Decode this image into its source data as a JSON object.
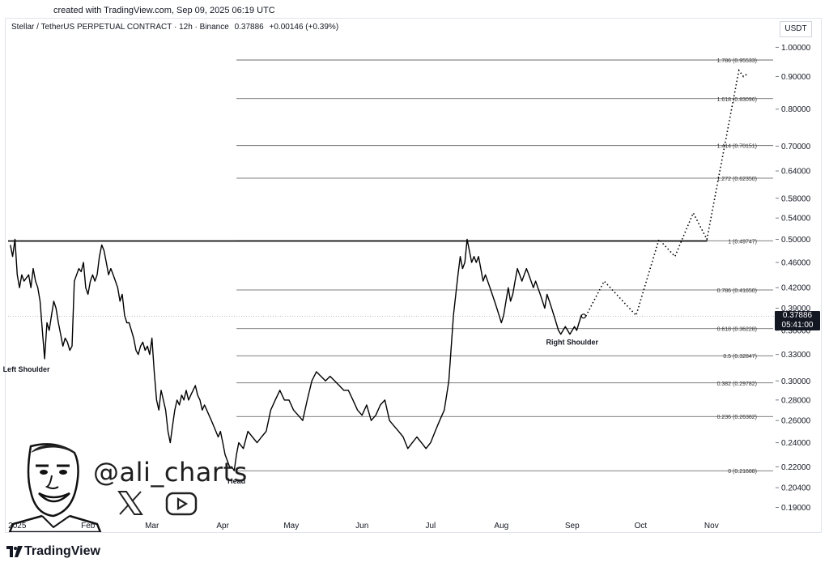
{
  "header": {
    "created": "created with TradingView.com, Sep 09, 2025 06:19 UTC"
  },
  "legend": {
    "symbol": "Stellar / TetherUS PERPETUAL CONTRACT · 12h · Binance",
    "last": "0.37886",
    "change": "+0.00146 (+0.39%)"
  },
  "currency": "USDT",
  "price_tag": {
    "price": "0.37886",
    "countdown": "05:41:00"
  },
  "branding": {
    "logo_text": "TradingView",
    "handle": "@ali_charts"
  },
  "colors": {
    "price": "#000000",
    "level": "#555555",
    "resistance": "#000000",
    "tag_bg": "#131722"
  },
  "chart_data": {
    "type": "line",
    "scale": "log",
    "ylim": [
      0.18,
      1.04
    ],
    "y_ticks": [
      "1.00000",
      "0.90000",
      "0.80000",
      "0.70000",
      "0.64000",
      "0.58000",
      "0.54000",
      "0.50000",
      "0.46000",
      "0.42000",
      "0.39000",
      "0.36000",
      "0.33000",
      "0.30000",
      "0.28000",
      "0.26000",
      "0.24000",
      "0.22000",
      "0.20400",
      "0.19000"
    ],
    "x_ticks": [
      "2025",
      "Feb",
      "Mar",
      "Apr",
      "May",
      "Jun",
      "Jul",
      "Aug",
      "Sep",
      "Oct",
      "Nov"
    ],
    "fib_levels": [
      {
        "label": "1.786 (0.95533)",
        "value": 0.95533
      },
      {
        "label": "1.618 (0.83096)",
        "value": 0.83096
      },
      {
        "label": "1.414 (0.70151)",
        "value": 0.70151
      },
      {
        "label": "1.272 (0.62350)",
        "value": 0.6235
      },
      {
        "label": "1 (0.49747)",
        "value": 0.49747
      },
      {
        "label": "0.786 (0.41650)",
        "value": 0.4165
      },
      {
        "label": "0.618 (0.36228)",
        "value": 0.36228
      },
      {
        "label": "0.5 (0.32847)",
        "value": 0.32847
      },
      {
        "label": "0.382 (0.29782)",
        "value": 0.29782
      },
      {
        "label": "0.236 (0.26382)",
        "value": 0.26382
      },
      {
        "label": "0 (0.21688)",
        "value": 0.21688
      }
    ],
    "resistance": 0.497,
    "annotations": [
      {
        "text": "Left Shoulder",
        "x": "2025-01-05",
        "y": 0.31
      },
      {
        "text": "Head",
        "x": "2025-04-07",
        "y": 0.207
      },
      {
        "text": "Right Shoulder",
        "x": "2025-09-01",
        "y": 0.342
      }
    ],
    "price_series": [
      [
        "2024-12-29",
        0.49
      ],
      [
        "2024-12-30",
        0.47
      ],
      [
        "2024-12-31",
        0.5
      ],
      [
        "2025-01-01",
        0.44
      ],
      [
        "2025-01-02",
        0.42
      ],
      [
        "2025-01-03",
        0.44
      ],
      [
        "2025-01-04",
        0.43
      ],
      [
        "2025-01-06",
        0.44
      ],
      [
        "2025-01-07",
        0.42
      ],
      [
        "2025-01-08",
        0.45
      ],
      [
        "2025-01-09",
        0.43
      ],
      [
        "2025-01-10",
        0.42
      ],
      [
        "2025-01-11",
        0.4
      ],
      [
        "2025-01-12",
        0.36
      ],
      [
        "2025-01-13",
        0.325
      ],
      [
        "2025-01-14",
        0.37
      ],
      [
        "2025-01-15",
        0.36
      ],
      [
        "2025-01-16",
        0.38
      ],
      [
        "2025-01-17",
        0.4
      ],
      [
        "2025-01-18",
        0.39
      ],
      [
        "2025-01-19",
        0.37
      ],
      [
        "2025-01-20",
        0.355
      ],
      [
        "2025-01-21",
        0.34
      ],
      [
        "2025-01-22",
        0.35
      ],
      [
        "2025-01-23",
        0.345
      ],
      [
        "2025-01-24",
        0.335
      ],
      [
        "2025-01-25",
        0.34
      ],
      [
        "2025-01-26",
        0.43
      ],
      [
        "2025-01-27",
        0.44
      ],
      [
        "2025-01-28",
        0.45
      ],
      [
        "2025-01-29",
        0.445
      ],
      [
        "2025-01-30",
        0.46
      ],
      [
        "2025-01-31",
        0.42
      ],
      [
        "2025-02-01",
        0.41
      ],
      [
        "2025-02-02",
        0.43
      ],
      [
        "2025-02-03",
        0.44
      ],
      [
        "2025-02-04",
        0.43
      ],
      [
        "2025-02-05",
        0.44
      ],
      [
        "2025-02-06",
        0.47
      ],
      [
        "2025-02-07",
        0.49
      ],
      [
        "2025-02-08",
        0.48
      ],
      [
        "2025-02-09",
        0.46
      ],
      [
        "2025-02-10",
        0.44
      ],
      [
        "2025-02-11",
        0.45
      ],
      [
        "2025-02-12",
        0.44
      ],
      [
        "2025-02-13",
        0.43
      ],
      [
        "2025-02-14",
        0.42
      ],
      [
        "2025-02-15",
        0.4
      ],
      [
        "2025-02-16",
        0.41
      ],
      [
        "2025-02-17",
        0.38
      ],
      [
        "2025-02-18",
        0.37
      ],
      [
        "2025-02-19",
        0.37
      ],
      [
        "2025-02-20",
        0.36
      ],
      [
        "2025-02-21",
        0.35
      ],
      [
        "2025-02-22",
        0.335
      ],
      [
        "2025-02-23",
        0.33
      ],
      [
        "2025-02-24",
        0.34
      ],
      [
        "2025-02-25",
        0.345
      ],
      [
        "2025-02-26",
        0.335
      ],
      [
        "2025-02-27",
        0.34
      ],
      [
        "2025-02-28",
        0.33
      ],
      [
        "2025-03-01",
        0.35
      ],
      [
        "2025-03-02",
        0.31
      ],
      [
        "2025-03-03",
        0.28
      ],
      [
        "2025-03-04",
        0.27
      ],
      [
        "2025-03-05",
        0.29
      ],
      [
        "2025-03-06",
        0.28
      ],
      [
        "2025-03-07",
        0.27
      ],
      [
        "2025-03-08",
        0.25
      ],
      [
        "2025-03-09",
        0.24
      ],
      [
        "2025-03-10",
        0.255
      ],
      [
        "2025-03-11",
        0.27
      ],
      [
        "2025-03-12",
        0.28
      ],
      [
        "2025-03-13",
        0.275
      ],
      [
        "2025-03-14",
        0.285
      ],
      [
        "2025-03-15",
        0.28
      ],
      [
        "2025-03-16",
        0.29
      ],
      [
        "2025-03-17",
        0.28
      ],
      [
        "2025-03-18",
        0.285
      ],
      [
        "2025-03-19",
        0.29
      ],
      [
        "2025-03-20",
        0.295
      ],
      [
        "2025-03-21",
        0.285
      ],
      [
        "2025-03-22",
        0.28
      ],
      [
        "2025-03-23",
        0.27
      ],
      [
        "2025-03-24",
        0.275
      ],
      [
        "2025-03-25",
        0.27
      ],
      [
        "2025-03-26",
        0.265
      ],
      [
        "2025-03-27",
        0.26
      ],
      [
        "2025-03-28",
        0.255
      ],
      [
        "2025-03-29",
        0.25
      ],
      [
        "2025-03-30",
        0.245
      ],
      [
        "2025-03-31",
        0.25
      ],
      [
        "2025-04-01",
        0.24
      ],
      [
        "2025-04-02",
        0.23
      ],
      [
        "2025-04-03",
        0.225
      ],
      [
        "2025-04-04",
        0.22
      ],
      [
        "2025-04-05",
        0.22
      ],
      [
        "2025-04-06",
        0.2169
      ],
      [
        "2025-04-07",
        0.23
      ],
      [
        "2025-04-08",
        0.24
      ],
      [
        "2025-04-10",
        0.235
      ],
      [
        "2025-04-12",
        0.25
      ],
      [
        "2025-04-14",
        0.245
      ],
      [
        "2025-04-16",
        0.24
      ],
      [
        "2025-04-18",
        0.245
      ],
      [
        "2025-04-20",
        0.25
      ],
      [
        "2025-04-22",
        0.27
      ],
      [
        "2025-04-24",
        0.28
      ],
      [
        "2025-04-26",
        0.29
      ],
      [
        "2025-04-28",
        0.28
      ],
      [
        "2025-04-30",
        0.28
      ],
      [
        "2025-05-02",
        0.27
      ],
      [
        "2025-05-04",
        0.265
      ],
      [
        "2025-05-06",
        0.26
      ],
      [
        "2025-05-08",
        0.28
      ],
      [
        "2025-05-10",
        0.3
      ],
      [
        "2025-05-12",
        0.31
      ],
      [
        "2025-05-14",
        0.305
      ],
      [
        "2025-05-16",
        0.3
      ],
      [
        "2025-05-18",
        0.305
      ],
      [
        "2025-05-20",
        0.3
      ],
      [
        "2025-05-22",
        0.295
      ],
      [
        "2025-05-24",
        0.29
      ],
      [
        "2025-05-26",
        0.29
      ],
      [
        "2025-05-28",
        0.28
      ],
      [
        "2025-05-30",
        0.27
      ],
      [
        "2025-06-01",
        0.265
      ],
      [
        "2025-06-03",
        0.275
      ],
      [
        "2025-06-05",
        0.26
      ],
      [
        "2025-06-07",
        0.265
      ],
      [
        "2025-06-09",
        0.275
      ],
      [
        "2025-06-11",
        0.28
      ],
      [
        "2025-06-13",
        0.26
      ],
      [
        "2025-06-15",
        0.255
      ],
      [
        "2025-06-17",
        0.25
      ],
      [
        "2025-06-19",
        0.245
      ],
      [
        "2025-06-21",
        0.235
      ],
      [
        "2025-06-23",
        0.24
      ],
      [
        "2025-06-25",
        0.245
      ],
      [
        "2025-06-27",
        0.24
      ],
      [
        "2025-06-29",
        0.235
      ],
      [
        "2025-07-01",
        0.24
      ],
      [
        "2025-07-03",
        0.25
      ],
      [
        "2025-07-05",
        0.26
      ],
      [
        "2025-07-07",
        0.27
      ],
      [
        "2025-07-09",
        0.3
      ],
      [
        "2025-07-11",
        0.38
      ],
      [
        "2025-07-13",
        0.44
      ],
      [
        "2025-07-14",
        0.47
      ],
      [
        "2025-07-15",
        0.45
      ],
      [
        "2025-07-16",
        0.46
      ],
      [
        "2025-07-17",
        0.5
      ],
      [
        "2025-07-18",
        0.48
      ],
      [
        "2025-07-19",
        0.46
      ],
      [
        "2025-07-20",
        0.47
      ],
      [
        "2025-07-21",
        0.46
      ],
      [
        "2025-07-22",
        0.47
      ],
      [
        "2025-07-23",
        0.45
      ],
      [
        "2025-07-24",
        0.43
      ],
      [
        "2025-07-25",
        0.44
      ],
      [
        "2025-07-26",
        0.43
      ],
      [
        "2025-07-27",
        0.42
      ],
      [
        "2025-07-28",
        0.41
      ],
      [
        "2025-07-29",
        0.4
      ],
      [
        "2025-07-30",
        0.39
      ],
      [
        "2025-07-31",
        0.38
      ],
      [
        "2025-08-01",
        0.37
      ],
      [
        "2025-08-02",
        0.38
      ],
      [
        "2025-08-03",
        0.4
      ],
      [
        "2025-08-04",
        0.42
      ],
      [
        "2025-08-05",
        0.4
      ],
      [
        "2025-08-06",
        0.41
      ],
      [
        "2025-08-07",
        0.43
      ],
      [
        "2025-08-08",
        0.45
      ],
      [
        "2025-08-09",
        0.44
      ],
      [
        "2025-08-10",
        0.43
      ],
      [
        "2025-08-11",
        0.44
      ],
      [
        "2025-08-12",
        0.45
      ],
      [
        "2025-08-13",
        0.44
      ],
      [
        "2025-08-14",
        0.43
      ],
      [
        "2025-08-15",
        0.42
      ],
      [
        "2025-08-16",
        0.43
      ],
      [
        "2025-08-17",
        0.42
      ],
      [
        "2025-08-18",
        0.41
      ],
      [
        "2025-08-19",
        0.4
      ],
      [
        "2025-08-20",
        0.39
      ],
      [
        "2025-08-21",
        0.41
      ],
      [
        "2025-08-22",
        0.4
      ],
      [
        "2025-08-23",
        0.39
      ],
      [
        "2025-08-24",
        0.38
      ],
      [
        "2025-08-25",
        0.37
      ],
      [
        "2025-08-26",
        0.36
      ],
      [
        "2025-08-27",
        0.355
      ],
      [
        "2025-08-28",
        0.36
      ],
      [
        "2025-08-29",
        0.365
      ],
      [
        "2025-08-30",
        0.36
      ],
      [
        "2025-08-31",
        0.355
      ],
      [
        "2025-09-01",
        0.36
      ],
      [
        "2025-09-02",
        0.365
      ],
      [
        "2025-09-03",
        0.36
      ],
      [
        "2025-09-04",
        0.37
      ],
      [
        "2025-09-05",
        0.38
      ],
      [
        "2025-09-06",
        0.379
      ]
    ],
    "projection": [
      [
        "2025-09-07",
        0.379
      ],
      [
        "2025-09-15",
        0.43
      ],
      [
        "2025-09-29",
        0.38
      ],
      [
        "2025-10-09",
        0.5
      ],
      [
        "2025-10-16",
        0.47
      ],
      [
        "2025-10-24",
        0.55
      ],
      [
        "2025-10-30",
        0.5
      ],
      [
        "2025-11-13",
        0.92
      ],
      [
        "2025-11-15",
        0.9
      ],
      [
        "2025-11-17",
        0.91
      ]
    ]
  }
}
